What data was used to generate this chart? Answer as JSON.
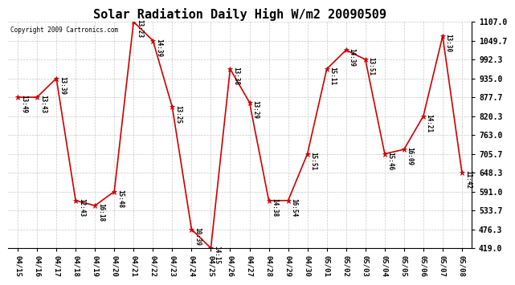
{
  "title": "Solar Radiation Daily High W/m2 20090509",
  "copyright": "Copyright 2009 Cartronics.com",
  "dates": [
    "04/15",
    "04/16",
    "04/17",
    "04/18",
    "04/19",
    "04/20",
    "04/21",
    "04/22",
    "04/23",
    "04/24",
    "04/25",
    "04/26",
    "04/27",
    "04/28",
    "04/29",
    "04/30",
    "05/01",
    "05/02",
    "05/03",
    "05/04",
    "05/05",
    "05/06",
    "05/07",
    "05/08"
  ],
  "values": [
    877.7,
    877.7,
    935.0,
    563.7,
    548.3,
    591.0,
    1107.0,
    1049.7,
    848.0,
    476.3,
    419.0,
    963.3,
    862.0,
    563.7,
    563.7,
    705.7,
    963.3,
    1021.0,
    992.3,
    705.7,
    719.0,
    820.3,
    1063.3,
    648.3
  ],
  "time_labels": [
    "13:49",
    "13:43",
    "13:39",
    "12:43",
    "16:18",
    "15:48",
    "13:23",
    "14:39",
    "13:25",
    "10:39",
    "14:15",
    "13:38",
    "13:29",
    "14:38",
    "16:54",
    "15:51",
    "15:11",
    "14:39",
    "13:51",
    "15:46",
    "16:09",
    "14:21",
    "13:30",
    "11:42"
  ],
  "ylim": [
    419.0,
    1107.0
  ],
  "yticks": [
    419.0,
    476.3,
    533.7,
    591.0,
    648.3,
    705.7,
    763.0,
    820.3,
    877.7,
    935.0,
    992.3,
    1049.7,
    1107.0
  ],
  "line_color": "#cc0000",
  "marker_color": "#cc0000",
  "bg_color": "#ffffff",
  "grid_color": "#c8c8c8",
  "title_fontsize": 11,
  "tick_fontsize": 7,
  "label_fontsize": 6.5
}
